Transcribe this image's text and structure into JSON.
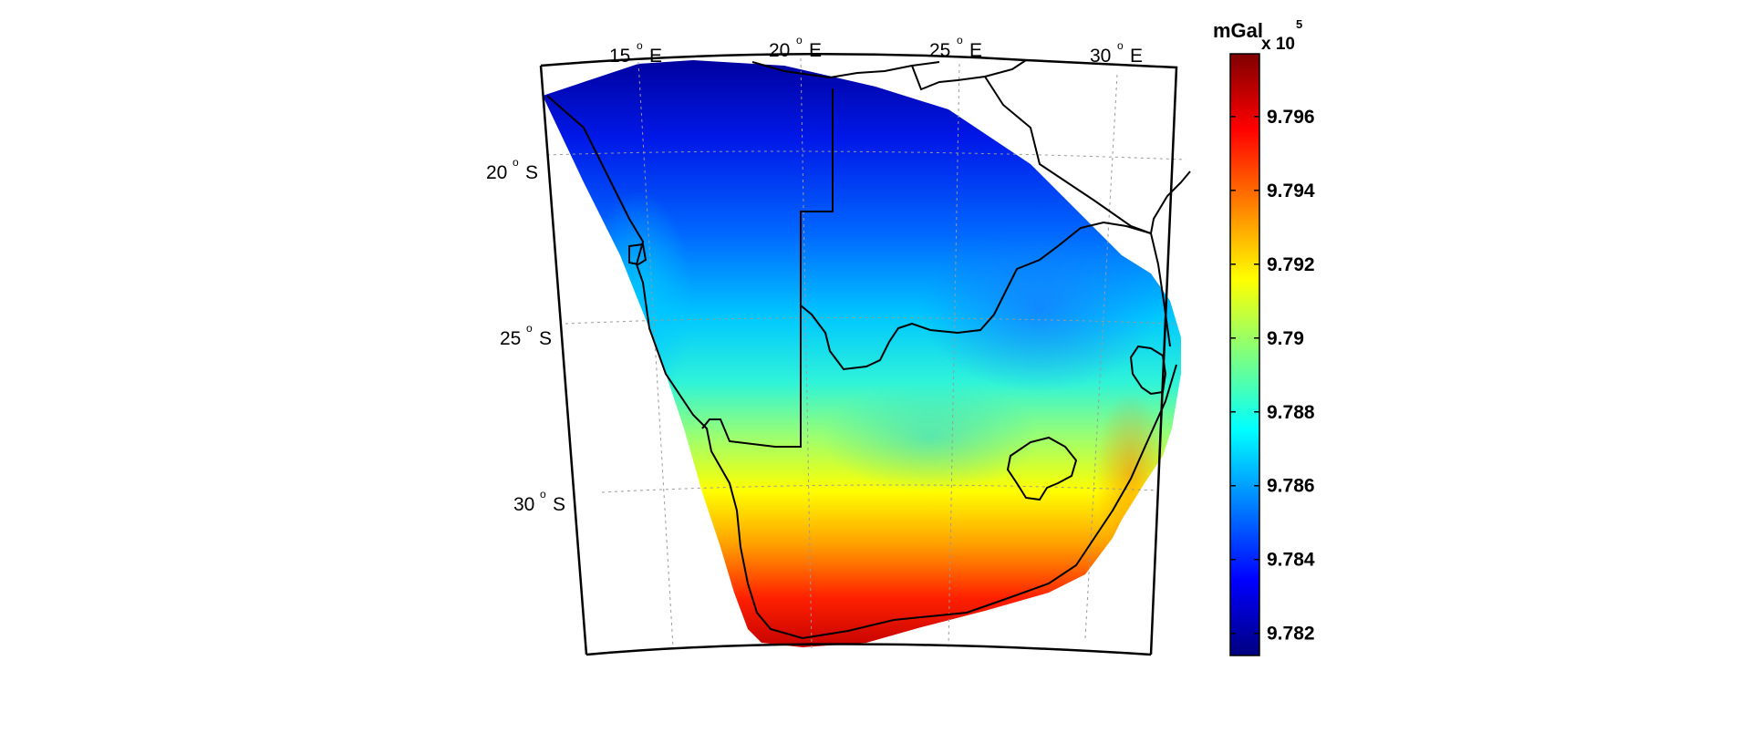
{
  "map": {
    "projection": "conic",
    "region": "Southern Africa",
    "lon_labels": [
      {
        "value": "15",
        "suffix": "E"
      },
      {
        "value": "20",
        "suffix": "E"
      },
      {
        "value": "25",
        "suffix": "E"
      },
      {
        "value": "30",
        "suffix": "E"
      }
    ],
    "lat_labels": [
      {
        "value": "20",
        "suffix": "S"
      },
      {
        "value": "25",
        "suffix": "S"
      },
      {
        "value": "30",
        "suffix": "S"
      }
    ],
    "degree_symbol": "o",
    "grid": true
  },
  "colorbar": {
    "unit": "mGal",
    "multiplier": "x 10",
    "exponent": "5",
    "ticks": [
      "9.796",
      "9.794",
      "9.792",
      "9.79",
      "9.788",
      "9.786",
      "9.784",
      "9.782"
    ],
    "range": [
      9.7814,
      9.7977
    ],
    "colormap": "jet",
    "colors": [
      "#00007f",
      "#0000ff",
      "#007fff",
      "#00ffff",
      "#7fff7f",
      "#ffff00",
      "#ff7f00",
      "#ff0000",
      "#7f0000"
    ]
  }
}
